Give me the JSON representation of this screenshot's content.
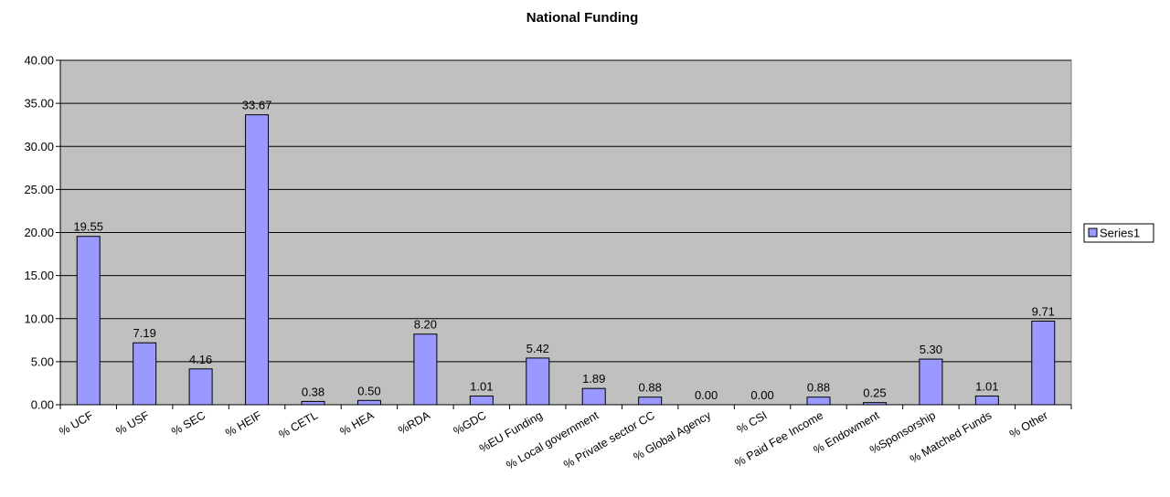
{
  "chart_data": {
    "type": "bar",
    "title": "National Funding",
    "categories": [
      "% UCF",
      "% USF",
      "% SEC",
      "% HEIF",
      "% CETL",
      "% HEA",
      "%RDA",
      "%GDC",
      "%EU Funding",
      "% Local government",
      "% Private sector CC",
      "% Global Agency",
      "% CSI",
      "% Paid Fee Income",
      "% Endowment",
      "%Sponsorship",
      "% Matched Funds",
      "% Other"
    ],
    "series": [
      {
        "name": "Series1",
        "values": [
          19.55,
          7.19,
          4.16,
          33.67,
          0.38,
          0.5,
          8.2,
          1.01,
          5.42,
          1.89,
          0.88,
          0.0,
          0.0,
          0.88,
          0.25,
          5.3,
          1.01,
          9.71
        ],
        "labels": [
          "19.55",
          "7.19",
          "4.16",
          "33.67",
          "0.38",
          "0.50",
          "8.20",
          "1.01",
          "5.42",
          "1.89",
          "0.88",
          "0.00",
          "0.00",
          "0.88",
          "0.25",
          "5.30",
          "1.01",
          "9.71"
        ]
      }
    ],
    "ylim": [
      0,
      40
    ],
    "yticks": [
      "0.00",
      "5.00",
      "10.00",
      "15.00",
      "20.00",
      "25.00",
      "30.00",
      "35.00",
      "40.00"
    ],
    "xlabel": "",
    "ylabel": "",
    "grid": true,
    "legend": "right",
    "colors": {
      "bar": "#9999ff",
      "plot_background": "#c0c0c0",
      "gridline": "#000000"
    }
  }
}
